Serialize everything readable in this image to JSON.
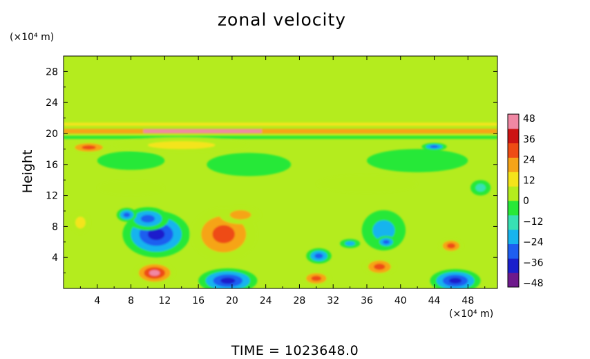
{
  "chart_data": {
    "type": "heatmap",
    "title": "zonal velocity",
    "xlabel": "",
    "ylabel": "Height",
    "x_unit": "(×10⁴ m)",
    "y_unit": "(×10⁴ m)",
    "xlim": [
      0,
      51.5
    ],
    "ylim": [
      0,
      30
    ],
    "x_ticks": [
      "4",
      "8",
      "12",
      "16",
      "20",
      "24",
      "28",
      "32",
      "36",
      "40",
      "44",
      "48"
    ],
    "y_ticks": [
      "4",
      "8",
      "12",
      "16",
      "20",
      "24",
      "28"
    ],
    "colorbar": {
      "min": -48,
      "max": 48,
      "ticks": [
        "48",
        "36",
        "24",
        "12",
        "0",
        "−12",
        "−24",
        "−36",
        "−48"
      ],
      "colors": [
        "#6e1a8c",
        "#1a1fcc",
        "#1e5ef0",
        "#18b4ee",
        "#38e0b4",
        "#28e838",
        "#b4ec1e",
        "#f4e41a",
        "#f6a418",
        "#ee4c14",
        "#cc1414",
        "#f088a4"
      ]
    },
    "background_value": 0,
    "features": [
      {
        "x": 11.0,
        "y": 7.0,
        "rx": 4.0,
        "ry": 3.0,
        "value": -40
      },
      {
        "x": 10.0,
        "y": 9.0,
        "rx": 2.5,
        "ry": 1.5,
        "value": -28
      },
      {
        "x": 7.5,
        "y": 9.5,
        "rx": 1.2,
        "ry": 0.9,
        "value": -26
      },
      {
        "x": 19.0,
        "y": 7.0,
        "rx": 4.0,
        "ry": 3.5,
        "value": 36
      },
      {
        "x": 21.0,
        "y": 9.5,
        "rx": 2.5,
        "ry": 1.2,
        "value": 22
      },
      {
        "x": 10.8,
        "y": 2.0,
        "rx": 2.5,
        "ry": 1.5,
        "value": 44
      },
      {
        "x": 19.5,
        "y": 1.0,
        "rx": 3.5,
        "ry": 1.6,
        "value": -40
      },
      {
        "x": 30.0,
        "y": 1.3,
        "rx": 1.8,
        "ry": 1.0,
        "value": 36
      },
      {
        "x": 30.3,
        "y": 4.2,
        "rx": 1.5,
        "ry": 1.0,
        "value": -34
      },
      {
        "x": 34.0,
        "y": 5.8,
        "rx": 1.2,
        "ry": 0.6,
        "value": -20
      },
      {
        "x": 37.5,
        "y": 2.8,
        "rx": 2.0,
        "ry": 1.2,
        "value": 34
      },
      {
        "x": 38.0,
        "y": 7.5,
        "rx": 2.6,
        "ry": 2.6,
        "value": -22
      },
      {
        "x": 38.3,
        "y": 6.0,
        "rx": 1.2,
        "ry": 0.8,
        "value": -32
      },
      {
        "x": 46.5,
        "y": 1.0,
        "rx": 3.0,
        "ry": 1.5,
        "value": -38
      },
      {
        "x": 46.0,
        "y": 5.5,
        "rx": 1.5,
        "ry": 1.0,
        "value": 26
      },
      {
        "x": 2.0,
        "y": 8.5,
        "rx": 1.2,
        "ry": 1.5,
        "value": 14
      },
      {
        "x": 3.0,
        "y": 18.2,
        "rx": 2.5,
        "ry": 0.8,
        "value": 28
      },
      {
        "x": 14.0,
        "y": 18.5,
        "rx": 8.0,
        "ry": 1.0,
        "value": 14
      },
      {
        "x": 8.0,
        "y": 16.5,
        "rx": 4.0,
        "ry": 1.2,
        "value": -10
      },
      {
        "x": 22.0,
        "y": 16.0,
        "rx": 5.0,
        "ry": 1.5,
        "value": -8
      },
      {
        "x": 42.0,
        "y": 16.5,
        "rx": 6.0,
        "ry": 1.5,
        "value": -10
      },
      {
        "x": 44.0,
        "y": 18.3,
        "rx": 1.5,
        "ry": 0.5,
        "value": -26
      },
      {
        "x": 8.0,
        "y": 13.0,
        "rx": 4.0,
        "ry": 1.0,
        "value": 8
      },
      {
        "x": 36.0,
        "y": 13.5,
        "rx": 6.0,
        "ry": 1.2,
        "value": 8
      },
      {
        "x": 49.5,
        "y": 13.0,
        "rx": 1.2,
        "ry": 1.0,
        "value": -14
      }
    ],
    "bands": [
      {
        "x1": 0.0,
        "x2": 51.5,
        "y": 20.3,
        "h": 0.6,
        "value": 20
      },
      {
        "x1": 9.5,
        "x2": 23.5,
        "y": 20.3,
        "h": 0.5,
        "value": 40
      },
      {
        "x1": 0.0,
        "x2": 51.5,
        "y": 19.5,
        "h": 0.4,
        "value": -6
      },
      {
        "x1": 0.0,
        "x2": 51.5,
        "y": 21.2,
        "h": 0.4,
        "value": 8
      }
    ]
  }
}
